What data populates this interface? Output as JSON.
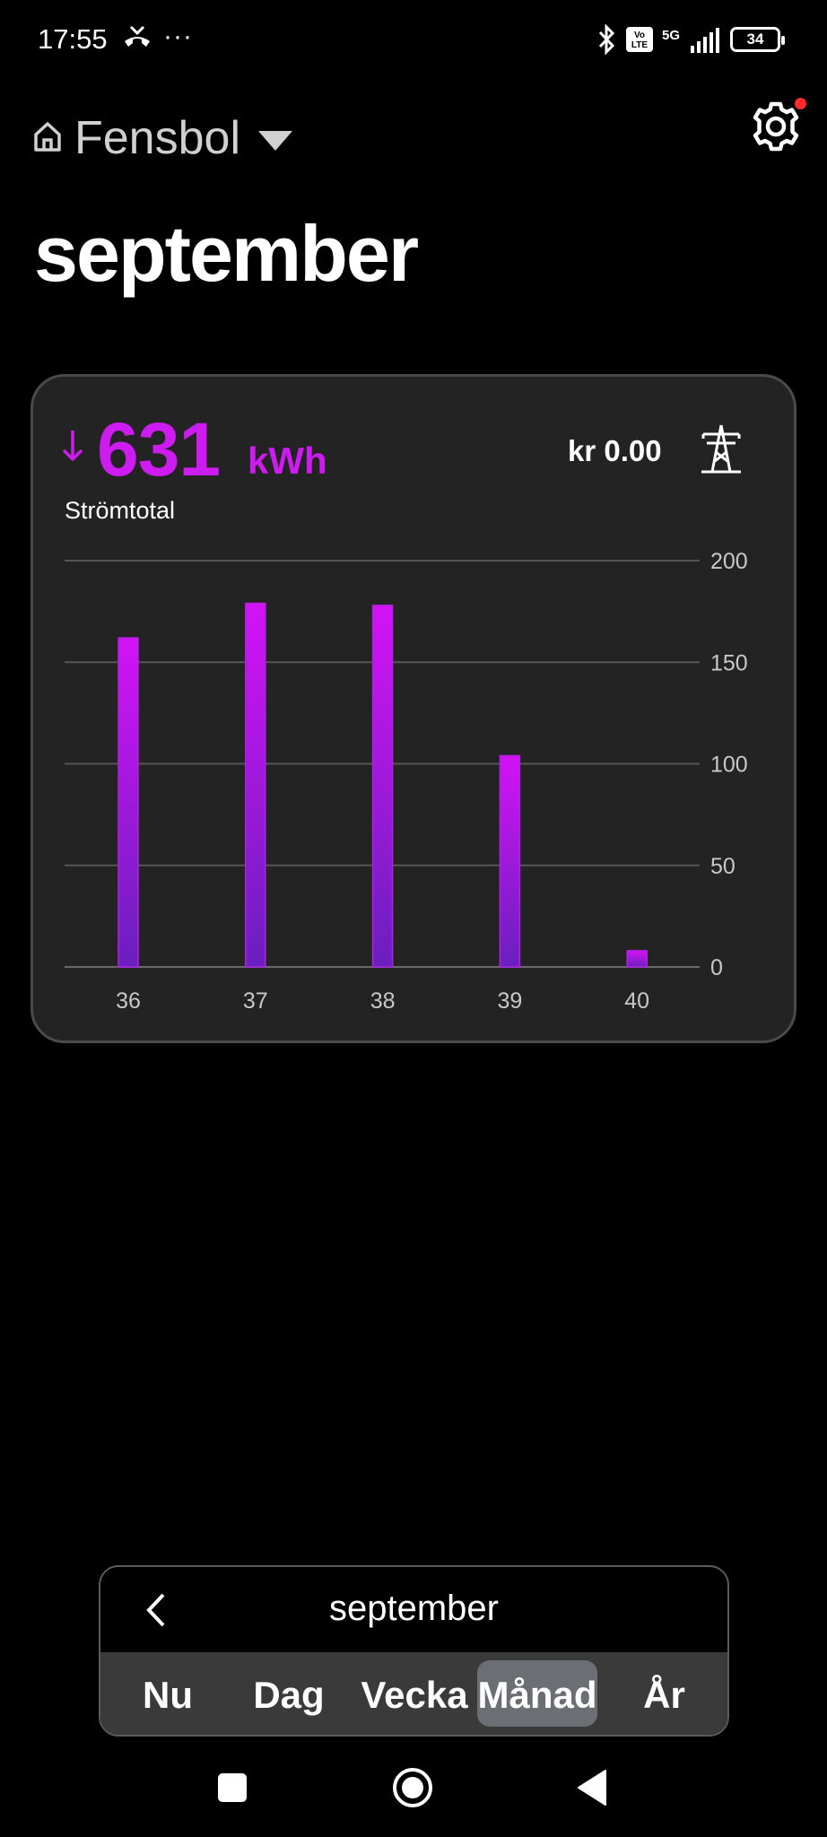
{
  "status_bar": {
    "time": "17:55",
    "more": "···",
    "network": "5G",
    "volte": "Vo LTE",
    "battery": "34",
    "icons": [
      "missed-call-icon",
      "bluetooth-icon",
      "volte-icon",
      "signal-icon",
      "battery-icon"
    ]
  },
  "header": {
    "location": "Fensbol",
    "title": "september",
    "icons": [
      "home-icon",
      "caret-down-icon",
      "gear-icon"
    ]
  },
  "summary": {
    "total_value": "631",
    "unit": "kWh",
    "label": "Strömtotal",
    "cost": "kr 0.00",
    "icons": [
      "down-arrow-icon",
      "power-pylon-icon"
    ]
  },
  "colors": {
    "accent": "#cc1cf0",
    "bar_bottom": "#6a1fc0",
    "card": "#232323",
    "grid": "#555555"
  },
  "chart_data": {
    "type": "bar",
    "categories": [
      "36",
      "37",
      "38",
      "39",
      "40"
    ],
    "values": [
      162,
      179,
      178,
      104,
      8
    ],
    "ylim": [
      0,
      200
    ],
    "yticks": [
      0,
      50,
      100,
      150,
      200
    ],
    "grid": true,
    "yaxis_side": "right"
  },
  "period_selector": {
    "current": "september",
    "tabs": [
      "Nu",
      "Dag",
      "Vecka",
      "Månad",
      "År"
    ],
    "active_tab": "Månad"
  },
  "nav_bar": {
    "icons": [
      "recents-square-icon",
      "home-circle-icon",
      "back-triangle-icon"
    ]
  }
}
